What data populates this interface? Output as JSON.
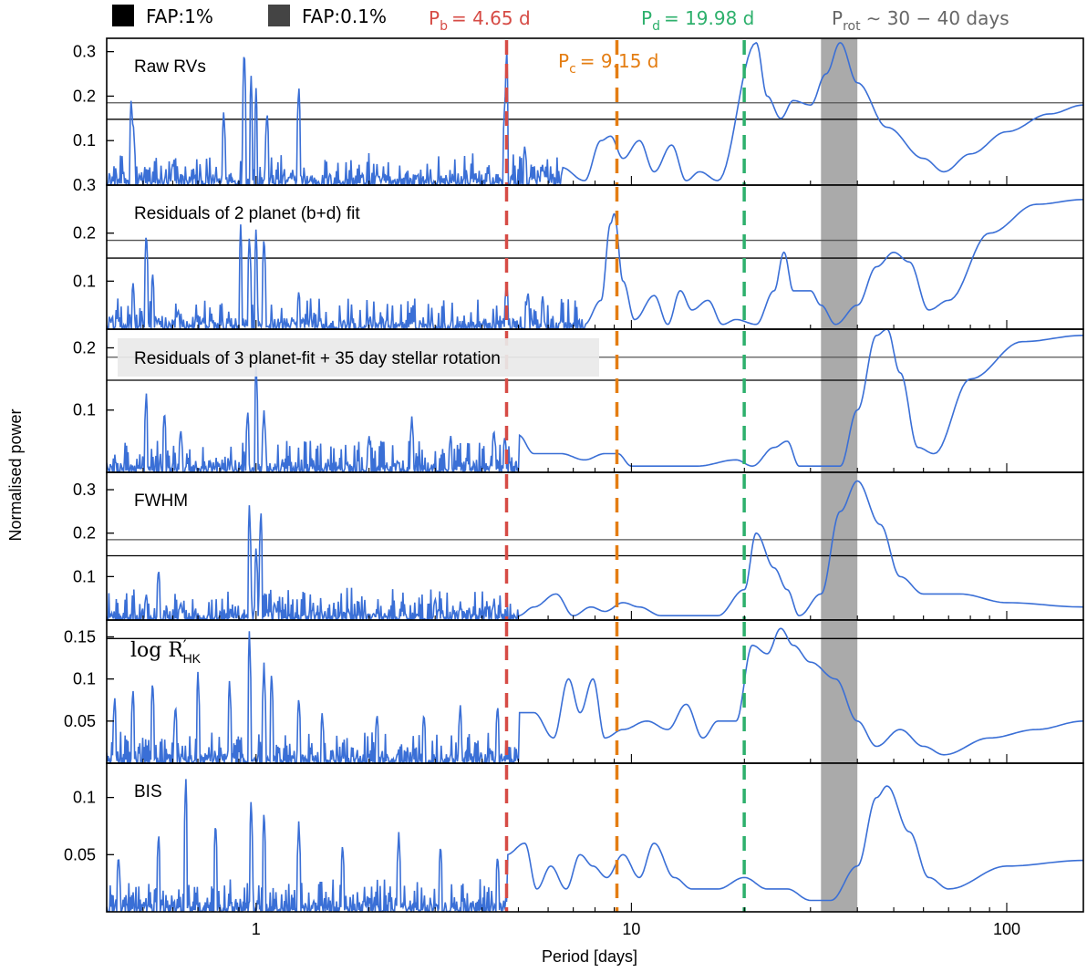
{
  "chart_data": {
    "type": "line",
    "xscale": "log",
    "xlim": [
      0.4,
      160
    ],
    "xlabel": "Period [days]",
    "ylabel": "Normalised power",
    "x_tick_labels": [
      "1",
      "10",
      "100"
    ],
    "legend": [
      {
        "label": "FAP:1%",
        "color": "#000000"
      },
      {
        "label": "FAP:0.1%",
        "color": "#444444"
      }
    ],
    "legend_position": "top-left, above plot",
    "series_color": "#3a6fd6",
    "shaded_band": {
      "x_range": [
        32,
        40
      ],
      "color": "#aaaaaa",
      "label_main": "P",
      "label_sub": "rot",
      "label_rest": "∼ 30 − 40 days"
    },
    "period_markers": [
      {
        "name_main": "P",
        "name_sub": "b",
        "label_value": "= 4.65 d",
        "period": 4.65,
        "color": "#d64b45"
      },
      {
        "name_main": "P",
        "name_sub": "c",
        "label_value": "= 9.15 d",
        "period": 9.15,
        "color": "#e47d12"
      },
      {
        "name_main": "P",
        "name_sub": "d",
        "label_value": "= 19.98 d",
        "period": 19.98,
        "color": "#2db06c"
      }
    ],
    "panels": [
      {
        "label": "Raw RVs",
        "ylim": [
          0,
          0.33
        ],
        "yticks": [
          0.1,
          0.2,
          0.3
        ],
        "ytick_labels": [
          "0.1",
          "0.2",
          "0.3"
        ],
        "fap_levels": [
          0.148,
          0.185
        ],
        "peaks": [
          [
            0.465,
            0.2
          ],
          [
            0.47,
            0.15
          ],
          [
            0.6,
            0.05
          ],
          [
            0.82,
            0.17
          ],
          [
            0.93,
            0.32
          ],
          [
            0.97,
            0.25
          ],
          [
            1.0,
            0.22
          ],
          [
            1.07,
            0.17
          ],
          [
            1.3,
            0.23
          ],
          [
            4.6,
            0.19
          ],
          [
            4.65,
            0.32
          ],
          [
            5.2,
            0.09
          ],
          [
            5.8,
            0.04
          ]
        ],
        "smooth": [
          [
            6.5,
            0.04
          ],
          [
            7.5,
            0.01
          ],
          [
            8.3,
            0.1
          ],
          [
            8.8,
            0.11
          ],
          [
            9.5,
            0.06
          ],
          [
            10.5,
            0.1
          ],
          [
            11.5,
            0.03
          ],
          [
            12.8,
            0.09
          ],
          [
            14,
            0.01
          ],
          [
            15.2,
            0.03
          ],
          [
            17,
            0.01
          ],
          [
            21.5,
            0.32
          ],
          [
            23,
            0.2
          ],
          [
            25,
            0.15
          ],
          [
            27,
            0.19
          ],
          [
            30,
            0.18
          ],
          [
            33,
            0.25
          ],
          [
            36,
            0.32
          ],
          [
            40,
            0.23
          ],
          [
            48,
            0.13
          ],
          [
            60,
            0.06
          ],
          [
            68,
            0.03
          ],
          [
            80,
            0.07
          ],
          [
            100,
            0.12
          ],
          [
            130,
            0.16
          ],
          [
            160,
            0.18
          ]
        ]
      },
      {
        "label": "Residuals of 2 planet (b+d) fit",
        "ylim": [
          0,
          0.3
        ],
        "yticks": [
          0.1,
          0.2,
          0.3
        ],
        "ytick_labels": [
          "0.1",
          "0.2",
          "0.3"
        ],
        "fap_levels": [
          0.148,
          0.185
        ],
        "peaks": [
          [
            0.47,
            0.1
          ],
          [
            0.51,
            0.21
          ],
          [
            0.53,
            0.12
          ],
          [
            0.62,
            0.04
          ],
          [
            0.91,
            0.22
          ],
          [
            0.96,
            0.2
          ],
          [
            1.0,
            0.21
          ],
          [
            1.05,
            0.2
          ],
          [
            1.3,
            0.08
          ],
          [
            4.65,
            0.1
          ],
          [
            5.3,
            0.08
          ],
          [
            5.8,
            0.07
          ],
          [
            6.5,
            0.02
          ]
        ],
        "smooth": [
          [
            7.5,
            0.01
          ],
          [
            8.3,
            0.06
          ],
          [
            8.8,
            0.22
          ],
          [
            9.0,
            0.24
          ],
          [
            9.5,
            0.1
          ],
          [
            10.2,
            0.02
          ],
          [
            11.5,
            0.07
          ],
          [
            12.5,
            0.01
          ],
          [
            13.5,
            0.08
          ],
          [
            14.5,
            0.04
          ],
          [
            16,
            0.06
          ],
          [
            17.5,
            0.01
          ],
          [
            19,
            0.02
          ],
          [
            21.5,
            0.01
          ],
          [
            24,
            0.08
          ],
          [
            25.5,
            0.16
          ],
          [
            27,
            0.08
          ],
          [
            30,
            0.08
          ],
          [
            32,
            0.05
          ],
          [
            35,
            0.01
          ],
          [
            40,
            0.05
          ],
          [
            45,
            0.13
          ],
          [
            50,
            0.16
          ],
          [
            55,
            0.14
          ],
          [
            62,
            0.04
          ],
          [
            70,
            0.06
          ],
          [
            90,
            0.2
          ],
          [
            120,
            0.26
          ],
          [
            160,
            0.27
          ]
        ]
      },
      {
        "label": "Residuals of 3 planet-fit + 35 day stellar rotation",
        "ylim": [
          0,
          0.23
        ],
        "yticks": [
          0.1,
          0.2
        ],
        "ytick_labels": [
          "0.1",
          "0.2"
        ],
        "fap_levels": [
          0.148,
          0.185
        ],
        "peaks": [
          [
            0.51,
            0.13
          ],
          [
            0.57,
            0.1
          ],
          [
            0.63,
            0.07
          ],
          [
            0.95,
            0.1
          ],
          [
            1.0,
            0.18
          ],
          [
            1.05,
            0.1
          ],
          [
            2.0,
            0.06
          ],
          [
            2.6,
            0.09
          ],
          [
            3.3,
            0.06
          ],
          [
            4.3,
            0.07
          ],
          [
            4.6,
            0.06
          ]
        ],
        "smooth": [
          [
            5.0,
            0.06
          ],
          [
            5.5,
            0.03
          ],
          [
            6.5,
            0.03
          ],
          [
            7.5,
            0.02
          ],
          [
            8.5,
            0.03
          ],
          [
            9.2,
            0.03
          ],
          [
            10,
            0.01
          ],
          [
            15,
            0.01
          ],
          [
            19,
            0.02
          ],
          [
            21,
            0.01
          ],
          [
            24,
            0.04
          ],
          [
            26,
            0.05
          ],
          [
            28,
            0.01
          ],
          [
            32,
            0.01
          ],
          [
            36,
            0.01
          ],
          [
            40,
            0.1
          ],
          [
            45,
            0.22
          ],
          [
            48,
            0.23
          ],
          [
            52,
            0.16
          ],
          [
            58,
            0.04
          ],
          [
            64,
            0.03
          ],
          [
            80,
            0.15
          ],
          [
            110,
            0.21
          ],
          [
            160,
            0.22
          ]
        ]
      },
      {
        "label": "FWHM",
        "ylim": [
          0,
          0.34
        ],
        "yticks": [
          0.1,
          0.2,
          0.3
        ],
        "ytick_labels": [
          "0.1",
          "0.2",
          "0.3"
        ],
        "fap_levels": [
          0.148,
          0.185
        ],
        "peaks": [
          [
            0.51,
            0.06
          ],
          [
            0.55,
            0.12
          ],
          [
            0.63,
            0.04
          ],
          [
            0.96,
            0.27
          ],
          [
            1.0,
            0.17
          ],
          [
            1.03,
            0.26
          ],
          [
            1.12,
            0.04
          ],
          [
            3.0,
            0.05
          ],
          [
            4.3,
            0.04
          ]
        ],
        "smooth": [
          [
            5.0,
            0.01
          ],
          [
            5.5,
            0.03
          ],
          [
            6.3,
            0.06
          ],
          [
            7.0,
            0.01
          ],
          [
            7.8,
            0.03
          ],
          [
            8.5,
            0.02
          ],
          [
            9.5,
            0.04
          ],
          [
            10.5,
            0.03
          ],
          [
            12,
            0.01
          ],
          [
            17,
            0.01
          ],
          [
            20,
            0.07
          ],
          [
            21.5,
            0.2
          ],
          [
            24,
            0.12
          ],
          [
            26,
            0.07
          ],
          [
            28,
            0.01
          ],
          [
            32,
            0.06
          ],
          [
            36,
            0.25
          ],
          [
            40,
            0.32
          ],
          [
            46,
            0.22
          ],
          [
            52,
            0.1
          ],
          [
            60,
            0.06
          ],
          [
            75,
            0.06
          ],
          [
            100,
            0.04
          ],
          [
            160,
            0.03
          ]
        ]
      },
      {
        "label_text": "log R",
        "label_sup": "′",
        "label_sub": "HK",
        "ylim": [
          0,
          0.17
        ],
        "yticks": [
          0.05,
          0.1,
          0.15
        ],
        "ytick_labels": [
          "0.05",
          "0.1",
          "0.15"
        ],
        "fap_levels": [
          0.148
        ],
        "peaks": [
          [
            0.42,
            0.08
          ],
          [
            0.47,
            0.09
          ],
          [
            0.53,
            0.1
          ],
          [
            0.61,
            0.07
          ],
          [
            0.7,
            0.11
          ],
          [
            0.85,
            0.1
          ],
          [
            0.96,
            0.16
          ],
          [
            1.05,
            0.12
          ],
          [
            1.1,
            0.11
          ],
          [
            1.3,
            0.08
          ],
          [
            1.5,
            0.06
          ],
          [
            2.1,
            0.06
          ],
          [
            2.8,
            0.06
          ],
          [
            3.5,
            0.07
          ],
          [
            4.4,
            0.07
          ]
        ],
        "smooth": [
          [
            5.0,
            0.06
          ],
          [
            5.5,
            0.06
          ],
          [
            6.2,
            0.03
          ],
          [
            6.8,
            0.1
          ],
          [
            7.3,
            0.06
          ],
          [
            7.9,
            0.1
          ],
          [
            8.5,
            0.03
          ],
          [
            9.5,
            0.04
          ],
          [
            11,
            0.05
          ],
          [
            12.5,
            0.04
          ],
          [
            14,
            0.07
          ],
          [
            15.5,
            0.03
          ],
          [
            17,
            0.05
          ],
          [
            19,
            0.05
          ],
          [
            21,
            0.14
          ],
          [
            23,
            0.13
          ],
          [
            25,
            0.16
          ],
          [
            27,
            0.14
          ],
          [
            30,
            0.12
          ],
          [
            35,
            0.1
          ],
          [
            40,
            0.05
          ],
          [
            45,
            0.02
          ],
          [
            52,
            0.04
          ],
          [
            60,
            0.02
          ],
          [
            68,
            0.01
          ],
          [
            90,
            0.03
          ],
          [
            120,
            0.04
          ],
          [
            160,
            0.05
          ]
        ]
      },
      {
        "label": "BIS",
        "ylim": [
          0,
          0.13
        ],
        "yticks": [
          0.05,
          0.1
        ],
        "ytick_labels": [
          "0.05",
          "0.1"
        ],
        "fap_levels": [],
        "peaks": [
          [
            0.43,
            0.05
          ],
          [
            0.55,
            0.07
          ],
          [
            0.65,
            0.12
          ],
          [
            0.78,
            0.08
          ],
          [
            0.97,
            0.1
          ],
          [
            1.05,
            0.09
          ],
          [
            1.3,
            0.08
          ],
          [
            1.7,
            0.06
          ],
          [
            2.4,
            0.07
          ],
          [
            3.1,
            0.06
          ],
          [
            4.4,
            0.05
          ]
        ],
        "smooth": [
          [
            4.65,
            0.05
          ],
          [
            5.2,
            0.06
          ],
          [
            5.6,
            0.02
          ],
          [
            6.1,
            0.04
          ],
          [
            6.7,
            0.02
          ],
          [
            7.3,
            0.05
          ],
          [
            7.9,
            0.04
          ],
          [
            8.6,
            0.03
          ],
          [
            9.5,
            0.05
          ],
          [
            10.5,
            0.03
          ],
          [
            11.5,
            0.06
          ],
          [
            13,
            0.03
          ],
          [
            14.5,
            0.02
          ],
          [
            17,
            0.02
          ],
          [
            20,
            0.03
          ],
          [
            23,
            0.02
          ],
          [
            26,
            0.02
          ],
          [
            30,
            0.01
          ],
          [
            34,
            0.01
          ],
          [
            40,
            0.04
          ],
          [
            45,
            0.1
          ],
          [
            48,
            0.11
          ],
          [
            55,
            0.07
          ],
          [
            62,
            0.03
          ],
          [
            70,
            0.02
          ],
          [
            100,
            0.04
          ],
          [
            160,
            0.045
          ]
        ]
      }
    ]
  }
}
